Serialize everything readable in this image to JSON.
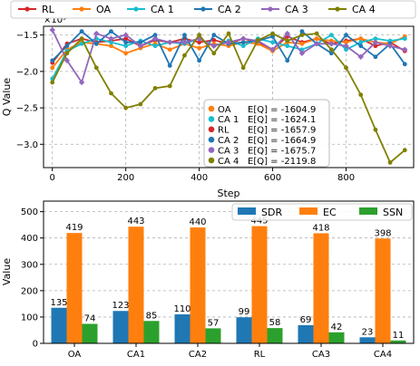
{
  "chart_data": [
    {
      "type": "line",
      "xlabel": "Step",
      "ylabel": "Q Value",
      "y_offset_label": "×10³",
      "xlim": [
        -24,
        984
      ],
      "ylim": [
        -3.32,
        -1.38
      ],
      "xticks": [
        0,
        200,
        400,
        600,
        800
      ],
      "yticks": [
        -1.5,
        -2.0,
        -2.5,
        -3.0
      ],
      "ytick_labels": [
        "−1.5",
        "−2.0",
        "−2.5",
        "−3.0"
      ],
      "grid": true,
      "legend_position": "top, outside",
      "x": [
        0,
        40,
        80,
        120,
        160,
        200,
        240,
        280,
        320,
        360,
        400,
        440,
        480,
        520,
        560,
        600,
        640,
        680,
        720,
        760,
        800,
        840,
        880,
        920,
        960
      ],
      "series": [
        {
          "name": "RL",
          "color": "#d62728",
          "values": [
            -1.88,
            -1.62,
            -1.55,
            -1.6,
            -1.58,
            -1.55,
            -1.65,
            -1.57,
            -1.6,
            -1.55,
            -1.6,
            -1.57,
            -1.62,
            -1.55,
            -1.6,
            -1.7,
            -1.52,
            -1.6,
            -1.55,
            -1.62,
            -1.58,
            -1.55,
            -1.65,
            -1.6,
            -1.72
          ]
        },
        {
          "name": "OA",
          "color": "#ff7f0e",
          "values": [
            -1.95,
            -1.7,
            -1.6,
            -1.62,
            -1.65,
            -1.75,
            -1.68,
            -1.62,
            -1.7,
            -1.62,
            -1.68,
            -1.62,
            -1.65,
            -1.6,
            -1.62,
            -1.72,
            -1.6,
            -1.62,
            -1.55,
            -1.58,
            -1.6,
            -1.55,
            -1.6,
            -1.62,
            -1.52
          ]
        },
        {
          "name": "CA 1",
          "color": "#17becf",
          "values": [
            -2.1,
            -1.72,
            -1.62,
            -1.55,
            -1.6,
            -1.65,
            -1.58,
            -1.65,
            -1.6,
            -1.62,
            -1.55,
            -1.65,
            -1.58,
            -1.65,
            -1.55,
            -1.6,
            -1.65,
            -1.7,
            -1.62,
            -1.5,
            -1.7,
            -1.6,
            -1.55,
            -1.58,
            -1.55
          ]
        },
        {
          "name": "CA 2",
          "color": "#1f77b4",
          "values": [
            -1.85,
            -1.65,
            -1.45,
            -1.62,
            -1.45,
            -1.6,
            -1.6,
            -1.5,
            -1.92,
            -1.5,
            -1.85,
            -1.5,
            -1.62,
            -1.6,
            -1.58,
            -1.52,
            -1.85,
            -1.45,
            -1.62,
            -1.75,
            -1.5,
            -1.65,
            -1.8,
            -1.62,
            -1.9
          ]
        },
        {
          "name": "CA 3",
          "color": "#9467bd",
          "values": [
            -1.43,
            -1.85,
            -2.15,
            -1.48,
            -1.55,
            -1.5,
            -1.65,
            -1.55,
            -1.6,
            -1.6,
            -1.55,
            -1.65,
            -1.6,
            -1.55,
            -1.58,
            -1.7,
            -1.48,
            -1.75,
            -1.62,
            -1.62,
            -1.65,
            -1.8,
            -1.6,
            -1.65,
            -1.7
          ]
        },
        {
          "name": "CA 4",
          "color": "#808000",
          "values": [
            -2.15,
            -1.75,
            -1.55,
            -1.95,
            -2.3,
            -2.5,
            -2.45,
            -2.23,
            -2.2,
            -1.78,
            -1.5,
            -1.75,
            -1.48,
            -1.95,
            -1.57,
            -1.48,
            -1.58,
            -1.5,
            -1.48,
            -1.7,
            -1.95,
            -2.32,
            -2.8,
            -3.25,
            -3.08
          ]
        }
      ],
      "annotation": {
        "title": "E[Q]",
        "rows": [
          {
            "name": "OA",
            "text": "E[Q] = -1604.9",
            "color": "#ff7f0e"
          },
          {
            "name": "CA 1",
            "text": "E[Q] = -1624.1",
            "color": "#17becf"
          },
          {
            "name": "RL",
            "text": "E[Q] = -1657.9",
            "color": "#d62728"
          },
          {
            "name": "CA 2",
            "text": "E[Q] = -1664.9",
            "color": "#1f77b4"
          },
          {
            "name": "CA 3",
            "text": "E[Q] = -1675.7",
            "color": "#9467bd"
          },
          {
            "name": "CA 4",
            "text": "E[Q] = -2119.8",
            "color": "#808000"
          }
        ]
      }
    },
    {
      "type": "bar",
      "xlabel": "",
      "ylabel": "Value",
      "ylim": [
        0,
        540
      ],
      "yticks": [
        0,
        100,
        200,
        300,
        400,
        500
      ],
      "grid": true,
      "legend_position": "top-right",
      "categories": [
        "OA",
        "CA1",
        "CA2",
        "RL",
        "CA3",
        "CA4"
      ],
      "series": [
        {
          "name": "SDR",
          "color": "#1f77b4",
          "values": [
            135,
            123,
            110,
            99,
            69,
            23
          ]
        },
        {
          "name": "EC",
          "color": "#ff7f0e",
          "values": [
            419,
            443,
            440,
            445,
            418,
            398
          ]
        },
        {
          "name": "SSN",
          "color": "#2ca02c",
          "values": [
            74,
            85,
            57,
            58,
            42,
            11
          ]
        }
      ]
    }
  ]
}
